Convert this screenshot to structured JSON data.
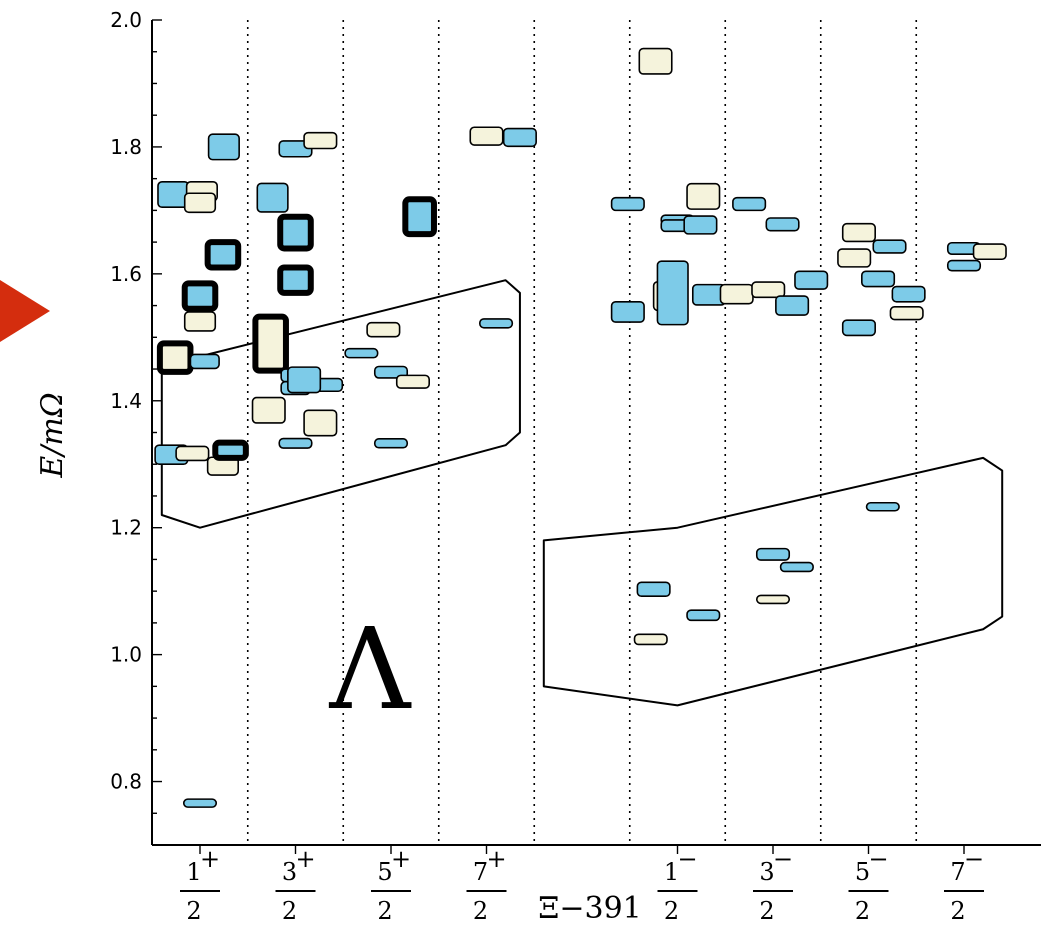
{
  "chart_data": {
    "type": "scatter",
    "title": "",
    "ylabel": "E/mΩ",
    "xlabel": "Ξ−391",
    "annotation": "Λ",
    "ylim": [
      0.7,
      2.0
    ],
    "yticks": [
      "0.8",
      "1.0",
      "1.2",
      "1.4",
      "1.6",
      "1.8",
      "2.0"
    ],
    "categories": [
      {
        "num": "1",
        "sup": "+",
        "den": "2"
      },
      {
        "num": "3",
        "sup": "+",
        "den": "2"
      },
      {
        "num": "5",
        "sup": "+",
        "den": "2"
      },
      {
        "num": "7",
        "sup": "+",
        "den": "2"
      },
      {
        "num": "1",
        "sup": "−",
        "den": "2"
      },
      {
        "num": "3",
        "sup": "−",
        "den": "2"
      },
      {
        "num": "5",
        "sup": "−",
        "den": "2"
      },
      {
        "num": "7",
        "sup": "−",
        "den": "2"
      }
    ],
    "colors": {
      "blue": "#7dcbe8",
      "cream": "#f5f3dc"
    },
    "boxes": [
      {
        "cat": 0,
        "dx": -0.28,
        "y": 1.725,
        "h": 0.04,
        "w": 0.32,
        "c": "blue",
        "bold": false
      },
      {
        "cat": 0,
        "dx": 0.02,
        "y": 1.73,
        "h": 0.03,
        "w": 0.32,
        "c": "cream",
        "bold": false
      },
      {
        "cat": 0,
        "dx": 0.0,
        "y": 1.712,
        "h": 0.03,
        "w": 0.32,
        "c": "cream",
        "bold": false
      },
      {
        "cat": 0,
        "dx": 0.25,
        "y": 1.8,
        "h": 0.04,
        "w": 0.32,
        "c": "blue",
        "bold": false
      },
      {
        "cat": 0,
        "dx": 0.24,
        "y": 1.63,
        "h": 0.04,
        "w": 0.32,
        "c": "blue",
        "bold": true
      },
      {
        "cat": 0,
        "dx": 0.0,
        "y": 1.565,
        "h": 0.04,
        "w": 0.32,
        "c": "blue",
        "bold": true
      },
      {
        "cat": 0,
        "dx": 0.0,
        "y": 1.525,
        "h": 0.03,
        "w": 0.32,
        "c": "cream",
        "bold": false
      },
      {
        "cat": 0,
        "dx": -0.26,
        "y": 1.468,
        "h": 0.045,
        "w": 0.32,
        "c": "cream",
        "bold": true
      },
      {
        "cat": 0,
        "dx": 0.05,
        "y": 1.462,
        "h": 0.022,
        "w": 0.3,
        "c": "blue",
        "bold": false
      },
      {
        "cat": 0,
        "dx": -0.3,
        "y": 1.315,
        "h": 0.03,
        "w": 0.34,
        "c": "blue",
        "bold": false
      },
      {
        "cat": 0,
        "dx": -0.08,
        "y": 1.317,
        "h": 0.022,
        "w": 0.34,
        "c": "cream",
        "bold": false
      },
      {
        "cat": 0,
        "dx": 0.24,
        "y": 1.297,
        "h": 0.028,
        "w": 0.32,
        "c": "cream",
        "bold": false
      },
      {
        "cat": 0,
        "dx": 0.32,
        "y": 1.322,
        "h": 0.024,
        "w": 0.32,
        "c": "blue",
        "bold": true
      },
      {
        "cat": 0,
        "dx": 0.0,
        "y": 0.766,
        "h": 0.012,
        "w": 0.34,
        "c": "blue",
        "bold": false
      },
      {
        "cat": 1,
        "dx": -0.24,
        "y": 1.72,
        "h": 0.045,
        "w": 0.32,
        "c": "blue",
        "bold": false
      },
      {
        "cat": 1,
        "dx": 0.0,
        "y": 1.797,
        "h": 0.025,
        "w": 0.34,
        "c": "blue",
        "bold": false
      },
      {
        "cat": 1,
        "dx": 0.26,
        "y": 1.81,
        "h": 0.025,
        "w": 0.34,
        "c": "cream",
        "bold": false
      },
      {
        "cat": 1,
        "dx": 0.0,
        "y": 1.665,
        "h": 0.05,
        "w": 0.32,
        "c": "blue",
        "bold": true
      },
      {
        "cat": 1,
        "dx": 0.0,
        "y": 1.59,
        "h": 0.04,
        "w": 0.32,
        "c": "blue",
        "bold": true
      },
      {
        "cat": 1,
        "dx": -0.26,
        "y": 1.49,
        "h": 0.085,
        "w": 0.32,
        "c": "cream",
        "bold": true
      },
      {
        "cat": 1,
        "dx": -0.28,
        "y": 1.385,
        "h": 0.04,
        "w": 0.34,
        "c": "cream",
        "bold": false
      },
      {
        "cat": 1,
        "dx": 0.0,
        "y": 1.44,
        "h": 0.02,
        "w": 0.3,
        "c": "blue",
        "bold": false
      },
      {
        "cat": 1,
        "dx": 0.0,
        "y": 1.42,
        "h": 0.02,
        "w": 0.3,
        "c": "blue",
        "bold": false
      },
      {
        "cat": 1,
        "dx": 0.34,
        "y": 1.425,
        "h": 0.02,
        "w": 0.3,
        "c": "blue",
        "bold": false
      },
      {
        "cat": 1,
        "dx": 0.09,
        "y": 1.433,
        "h": 0.04,
        "w": 0.34,
        "c": "blue",
        "bold": false
      },
      {
        "cat": 1,
        "dx": 0.26,
        "y": 1.365,
        "h": 0.04,
        "w": 0.34,
        "c": "cream",
        "bold": false
      },
      {
        "cat": 1,
        "dx": 0.0,
        "y": 1.333,
        "h": 0.015,
        "w": 0.34,
        "c": "blue",
        "bold": false
      },
      {
        "cat": 2,
        "dx": -0.31,
        "y": 1.475,
        "h": 0.014,
        "w": 0.34,
        "c": "blue",
        "bold": false
      },
      {
        "cat": 2,
        "dx": -0.08,
        "y": 1.512,
        "h": 0.022,
        "w": 0.34,
        "c": "cream",
        "bold": false
      },
      {
        "cat": 2,
        "dx": 0.0,
        "y": 1.445,
        "h": 0.018,
        "w": 0.34,
        "c": "blue",
        "bold": false
      },
      {
        "cat": 2,
        "dx": 0.23,
        "y": 1.43,
        "h": 0.02,
        "w": 0.34,
        "c": "cream",
        "bold": false
      },
      {
        "cat": 2,
        "dx": 0.0,
        "y": 1.333,
        "h": 0.014,
        "w": 0.34,
        "c": "blue",
        "bold": false
      },
      {
        "cat": 2,
        "dx": 0.3,
        "y": 1.69,
        "h": 0.055,
        "w": 0.3,
        "c": "blue",
        "bold": true
      },
      {
        "cat": 3,
        "dx": 0.0,
        "y": 1.817,
        "h": 0.028,
        "w": 0.34,
        "c": "cream",
        "bold": false
      },
      {
        "cat": 3,
        "dx": 0.35,
        "y": 1.815,
        "h": 0.028,
        "w": 0.34,
        "c": "blue",
        "bold": false
      },
      {
        "cat": 3,
        "dx": 0.1,
        "y": 1.522,
        "h": 0.014,
        "w": 0.34,
        "c": "blue",
        "bold": false
      },
      {
        "cat": 4,
        "dx": -0.23,
        "y": 1.935,
        "h": 0.04,
        "w": 0.34,
        "c": "cream",
        "bold": false
      },
      {
        "cat": 4,
        "dx": -0.52,
        "y": 1.71,
        "h": 0.02,
        "w": 0.34,
        "c": "blue",
        "bold": false
      },
      {
        "cat": 4,
        "dx": 0.27,
        "y": 1.722,
        "h": 0.04,
        "w": 0.34,
        "c": "cream",
        "bold": false
      },
      {
        "cat": 4,
        "dx": 0.0,
        "y": 1.685,
        "h": 0.015,
        "w": 0.34,
        "c": "blue",
        "bold": false
      },
      {
        "cat": 4,
        "dx": 0.0,
        "y": 1.676,
        "h": 0.018,
        "w": 0.34,
        "c": "blue",
        "bold": false
      },
      {
        "cat": 4,
        "dx": 0.24,
        "y": 1.677,
        "h": 0.028,
        "w": 0.34,
        "c": "blue",
        "bold": false
      },
      {
        "cat": 4,
        "dx": -0.52,
        "y": 1.54,
        "h": 0.032,
        "w": 0.34,
        "c": "blue",
        "bold": false
      },
      {
        "cat": 4,
        "dx": -0.1,
        "y": 1.565,
        "h": 0.045,
        "w": 0.3,
        "c": "cream",
        "bold": false
      },
      {
        "cat": 4,
        "dx": -0.05,
        "y": 1.57,
        "h": 0.1,
        "w": 0.32,
        "c": "blue",
        "bold": false
      },
      {
        "cat": 4,
        "dx": 0.33,
        "y": 1.567,
        "h": 0.032,
        "w": 0.34,
        "c": "blue",
        "bold": false
      },
      {
        "cat": 4,
        "dx": -0.25,
        "y": 1.103,
        "h": 0.022,
        "w": 0.34,
        "c": "blue",
        "bold": false
      },
      {
        "cat": 4,
        "dx": 0.27,
        "y": 1.062,
        "h": 0.016,
        "w": 0.34,
        "c": "blue",
        "bold": false
      },
      {
        "cat": 4,
        "dx": -0.28,
        "y": 1.024,
        "h": 0.016,
        "w": 0.34,
        "c": "cream",
        "bold": false
      },
      {
        "cat": 5,
        "dx": -0.25,
        "y": 1.71,
        "h": 0.02,
        "w": 0.34,
        "c": "blue",
        "bold": false
      },
      {
        "cat": 5,
        "dx": 0.1,
        "y": 1.678,
        "h": 0.02,
        "w": 0.34,
        "c": "blue",
        "bold": false
      },
      {
        "cat": 5,
        "dx": -0.38,
        "y": 1.568,
        "h": 0.03,
        "w": 0.34,
        "c": "cream",
        "bold": false
      },
      {
        "cat": 5,
        "dx": -0.05,
        "y": 1.575,
        "h": 0.024,
        "w": 0.34,
        "c": "cream",
        "bold": false
      },
      {
        "cat": 5,
        "dx": 0.2,
        "y": 1.55,
        "h": 0.03,
        "w": 0.34,
        "c": "blue",
        "bold": false
      },
      {
        "cat": 5,
        "dx": 0.4,
        "y": 1.59,
        "h": 0.028,
        "w": 0.34,
        "c": "blue",
        "bold": false
      },
      {
        "cat": 5,
        "dx": 0.0,
        "y": 1.158,
        "h": 0.018,
        "w": 0.34,
        "c": "blue",
        "bold": false
      },
      {
        "cat": 5,
        "dx": 0.25,
        "y": 1.138,
        "h": 0.014,
        "w": 0.34,
        "c": "blue",
        "bold": false
      },
      {
        "cat": 5,
        "dx": 0.0,
        "y": 1.087,
        "h": 0.012,
        "w": 0.34,
        "c": "cream",
        "bold": false
      },
      {
        "cat": 6,
        "dx": -0.1,
        "y": 1.665,
        "h": 0.028,
        "w": 0.34,
        "c": "cream",
        "bold": false
      },
      {
        "cat": 6,
        "dx": 0.22,
        "y": 1.643,
        "h": 0.02,
        "w": 0.34,
        "c": "blue",
        "bold": false
      },
      {
        "cat": 6,
        "dx": -0.15,
        "y": 1.625,
        "h": 0.028,
        "w": 0.34,
        "c": "cream",
        "bold": false
      },
      {
        "cat": 6,
        "dx": 0.1,
        "y": 1.592,
        "h": 0.024,
        "w": 0.34,
        "c": "blue",
        "bold": false
      },
      {
        "cat": 6,
        "dx": 0.42,
        "y": 1.568,
        "h": 0.024,
        "w": 0.34,
        "c": "blue",
        "bold": false
      },
      {
        "cat": 6,
        "dx": 0.4,
        "y": 1.538,
        "h": 0.02,
        "w": 0.34,
        "c": "cream",
        "bold": false
      },
      {
        "cat": 6,
        "dx": -0.1,
        "y": 1.515,
        "h": 0.024,
        "w": 0.34,
        "c": "blue",
        "bold": false
      },
      {
        "cat": 6,
        "dx": 0.15,
        "y": 1.233,
        "h": 0.012,
        "w": 0.34,
        "c": "blue",
        "bold": false
      },
      {
        "cat": 7,
        "dx": 0.0,
        "y": 1.64,
        "h": 0.018,
        "w": 0.34,
        "c": "blue",
        "bold": false
      },
      {
        "cat": 7,
        "dx": 0.27,
        "y": 1.635,
        "h": 0.024,
        "w": 0.34,
        "c": "cream",
        "bold": false
      },
      {
        "cat": 7,
        "dx": 0.0,
        "y": 1.613,
        "h": 0.016,
        "w": 0.34,
        "c": "blue",
        "bold": false
      }
    ],
    "outline_regions": [
      {
        "name": "positive-parity-region",
        "points": [
          [
            0,
            1.47
          ],
          [
            3.2,
            1.59
          ],
          [
            3.35,
            1.57
          ],
          [
            3.35,
            1.35
          ],
          [
            3.2,
            1.33
          ],
          [
            0,
            1.2
          ],
          [
            -0.4,
            1.22
          ],
          [
            -0.4,
            1.45
          ]
        ]
      },
      {
        "name": "negative-parity-region",
        "points": [
          [
            4,
            1.2
          ],
          [
            7.2,
            1.31
          ],
          [
            7.4,
            1.29
          ],
          [
            7.4,
            1.06
          ],
          [
            7.2,
            1.04
          ],
          [
            4,
            0.92
          ],
          [
            3.6,
            0.95
          ],
          [
            3.6,
            1.18
          ]
        ]
      }
    ]
  }
}
